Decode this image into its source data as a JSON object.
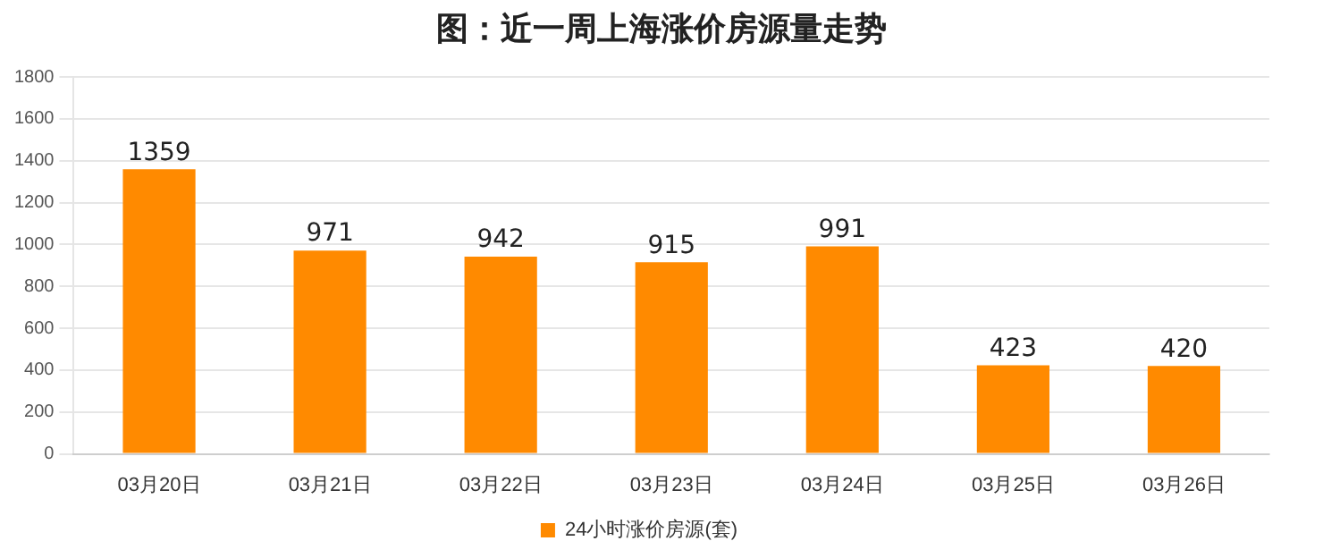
{
  "chart_data": {
    "type": "bar",
    "title": "图：近一周上海涨价房源量走势",
    "categories": [
      "03月20日",
      "03月21日",
      "03月22日",
      "03月23日",
      "03月24日",
      "03月25日",
      "03月26日"
    ],
    "series": [
      {
        "name": "24小时涨价房源(套)",
        "color": "#ff8a00",
        "values": [
          1359,
          971,
          942,
          915,
          991,
          423,
          420
        ]
      }
    ],
    "ylim": [
      0,
      1800
    ],
    "yticks": [
      0,
      200,
      400,
      600,
      800,
      1000,
      1200,
      1400,
      1600,
      1800
    ],
    "grid": "y",
    "legend": "bottom",
    "data_labels": true
  }
}
